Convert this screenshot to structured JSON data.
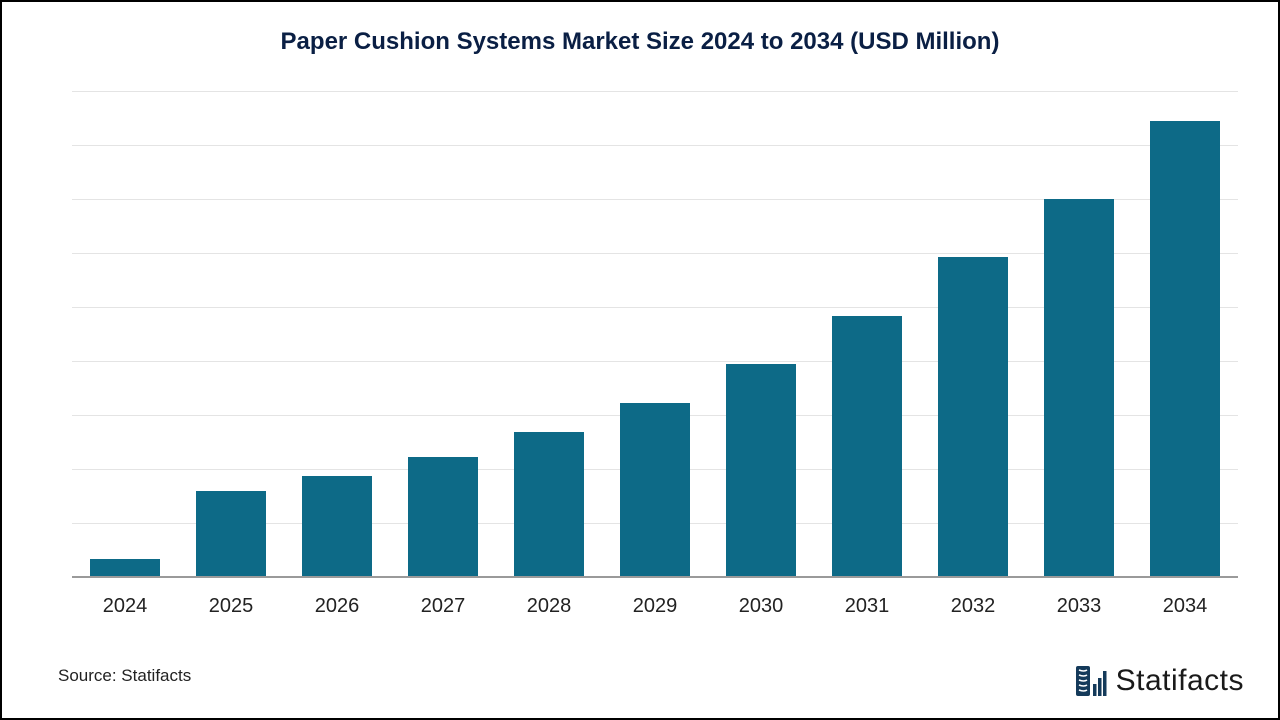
{
  "chart": {
    "type": "bar",
    "title": "Paper Cushion Systems Market Size 2024 to 2034 (USD Million)",
    "title_fontsize": 24,
    "title_color": "#0a1f44",
    "categories": [
      "2024",
      "2025",
      "2026",
      "2027",
      "2028",
      "2029",
      "2030",
      "2031",
      "2032",
      "2033",
      "2034"
    ],
    "values": [
      4,
      18,
      21,
      25,
      30,
      36,
      44,
      54,
      66,
      78,
      94
    ],
    "ylim": [
      0,
      100
    ],
    "grid_lines": 9,
    "bar_color": "#0d6a87",
    "background_color": "#ffffff",
    "grid_color": "#e4e4e4",
    "baseline_color": "#9a9a9a",
    "bar_width": 0.66,
    "xlabel_fontsize": 20,
    "xlabel_color": "#222222"
  },
  "footer": {
    "source_text": "Source: Statifacts",
    "source_fontsize": 17,
    "brand_name": "Statifacts",
    "brand_fontsize": 30,
    "brand_icon_color": "#143a5a"
  }
}
